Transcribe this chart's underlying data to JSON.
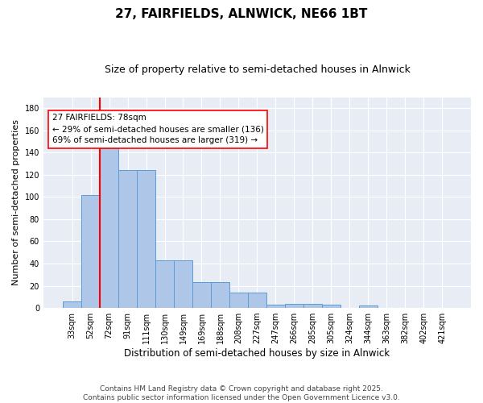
{
  "title1": "27, FAIRFIELDS, ALNWICK, NE66 1BT",
  "title2": "Size of property relative to semi-detached houses in Alnwick",
  "xlabel": "Distribution of semi-detached houses by size in Alnwick",
  "ylabel": "Number of semi-detached properties",
  "bar_labels": [
    "33sqm",
    "52sqm",
    "72sqm",
    "91sqm",
    "111sqm",
    "130sqm",
    "149sqm",
    "169sqm",
    "188sqm",
    "208sqm",
    "227sqm",
    "247sqm",
    "266sqm",
    "285sqm",
    "305sqm",
    "324sqm",
    "344sqm",
    "363sqm",
    "382sqm",
    "402sqm",
    "421sqm"
  ],
  "bar_values": [
    6,
    102,
    144,
    124,
    124,
    43,
    43,
    23,
    23,
    14,
    14,
    3,
    4,
    4,
    3,
    0,
    2,
    0,
    0,
    0,
    0
  ],
  "bar_color": "#aec6e8",
  "bar_edge_color": "#5b9bd5",
  "vline_index": 2,
  "vline_color": "red",
  "annotation_title": "27 FAIRFIELDS: 78sqm",
  "annotation_line1": "← 29% of semi-detached houses are smaller (136)",
  "annotation_line2": "69% of semi-detached houses are larger (319) →",
  "ylim": [
    0,
    190
  ],
  "yticks": [
    0,
    20,
    40,
    60,
    80,
    100,
    120,
    140,
    160,
    180
  ],
  "footer": "Contains HM Land Registry data © Crown copyright and database right 2025.\nContains public sector information licensed under the Open Government Licence v3.0.",
  "plot_bg_color": "#e8edf5"
}
